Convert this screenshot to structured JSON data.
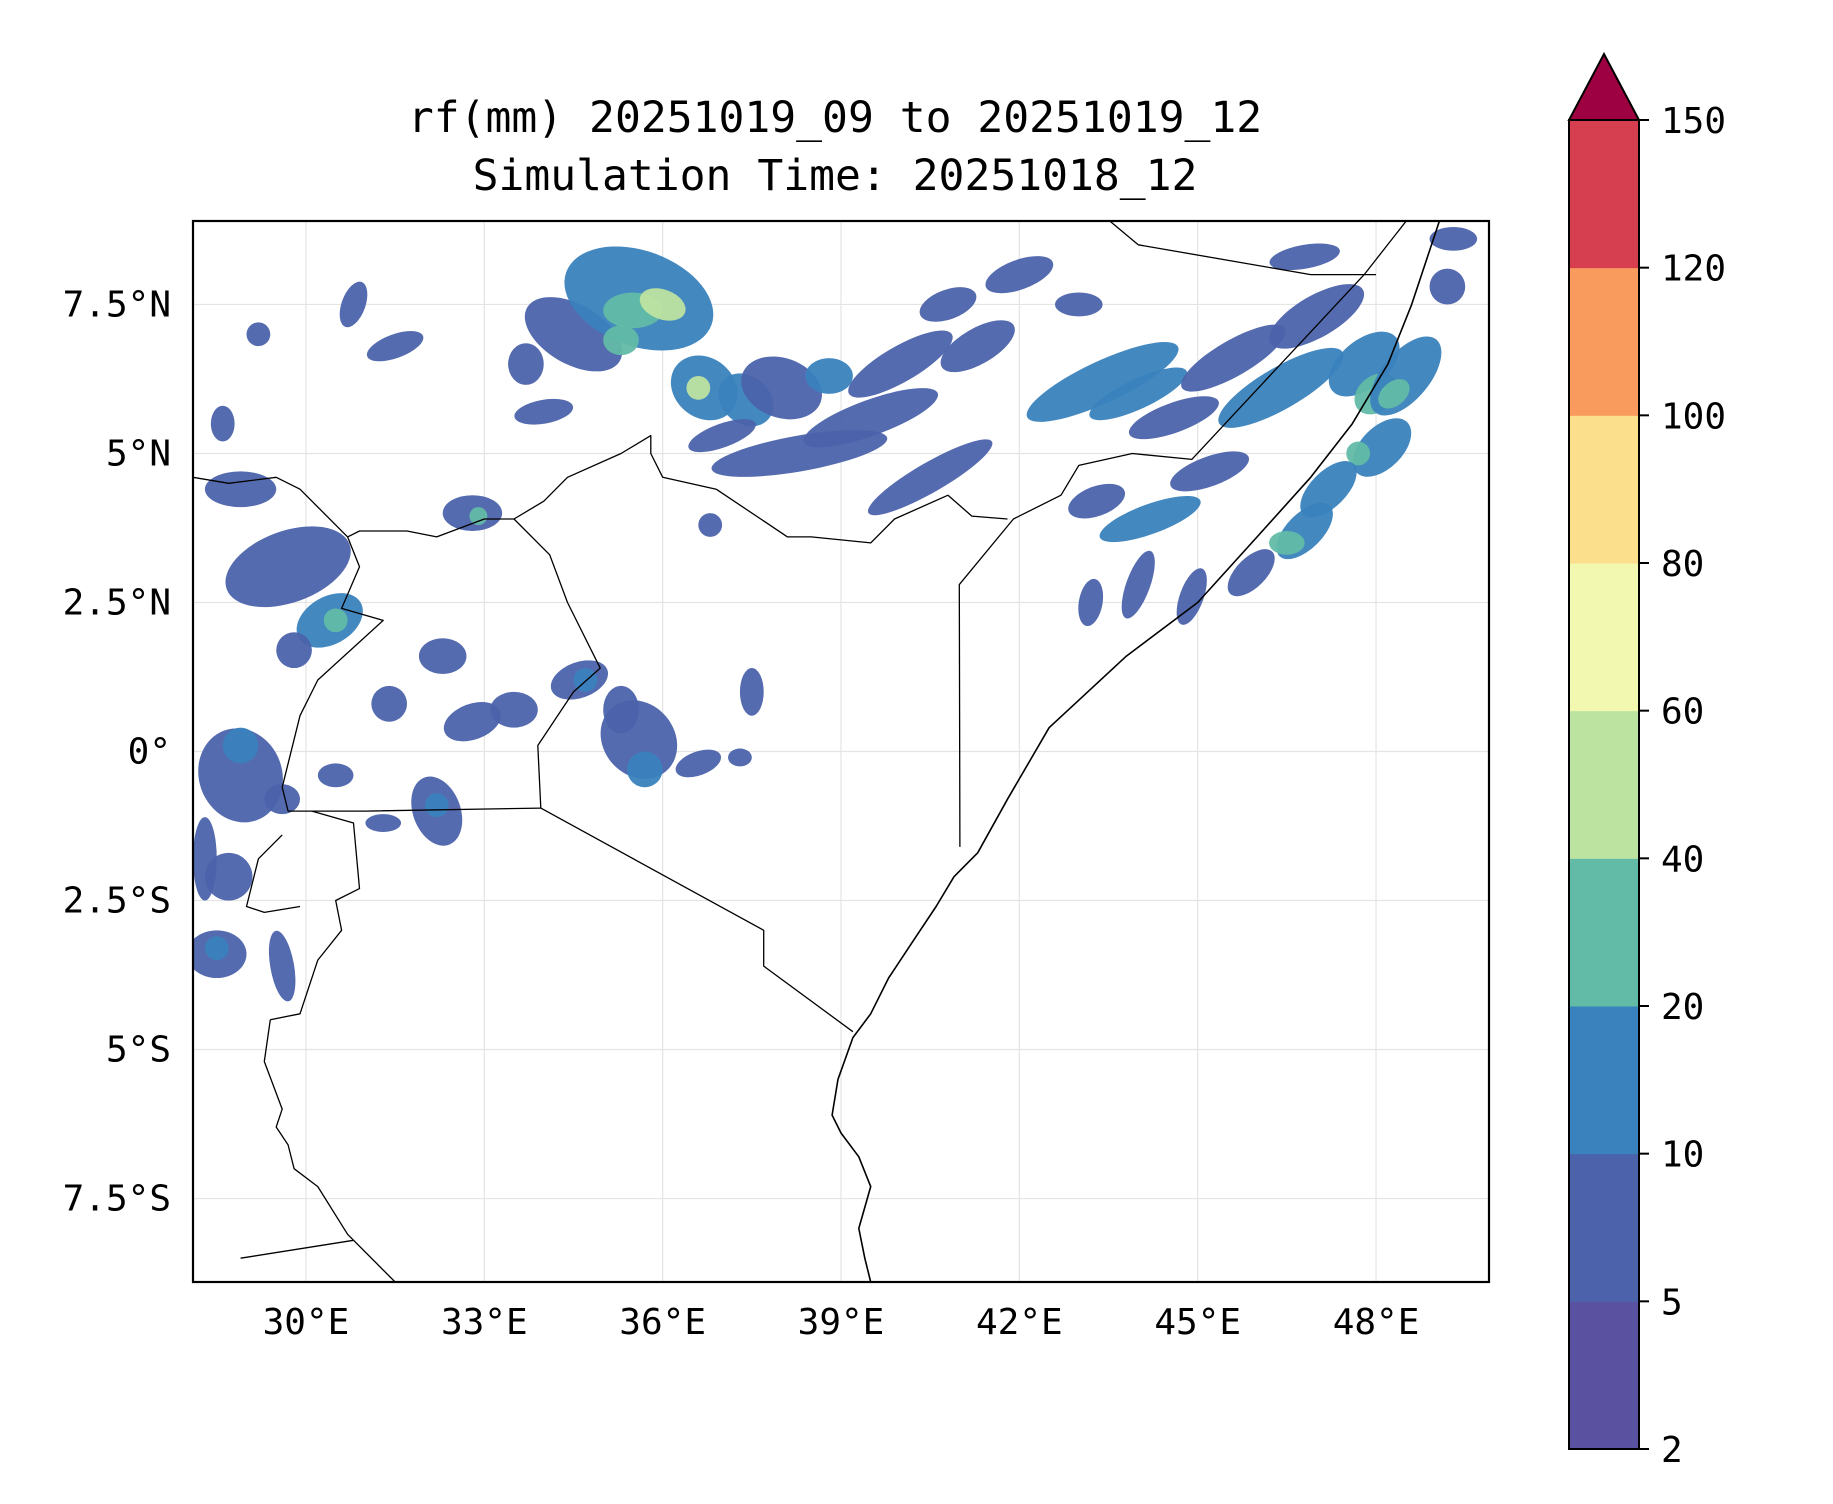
{
  "title": {
    "line1": "rf(mm) 20251019_09 to 20251019_12",
    "line2": "Simulation Time: 20251018_12"
  },
  "map": {
    "extent": {
      "lon_min": 28.1,
      "lon_max": 49.9,
      "lat_min": -8.9,
      "lat_max": 8.9
    },
    "gridlines": true,
    "lon_ticks": [
      {
        "value": 30,
        "label": "30°E"
      },
      {
        "value": 33,
        "label": "33°E"
      },
      {
        "value": 36,
        "label": "36°E"
      },
      {
        "value": 39,
        "label": "39°E"
      },
      {
        "value": 42,
        "label": "42°E"
      },
      {
        "value": 45,
        "label": "45°E"
      },
      {
        "value": 48,
        "label": "48°E"
      }
    ],
    "lat_ticks": [
      {
        "value": 7.5,
        "label": "7.5°N"
      },
      {
        "value": 5,
        "label": "5°N"
      },
      {
        "value": 2.5,
        "label": "2.5°N"
      },
      {
        "value": 0,
        "label": "0°"
      },
      {
        "value": -2.5,
        "label": "2.5°S"
      },
      {
        "value": -5,
        "label": "5°S"
      },
      {
        "value": -7.5,
        "label": "7.5°S"
      }
    ],
    "coastline": [
      [
        49.9,
        11.8
      ],
      [
        49.8,
        11.4
      ],
      [
        49.3,
        9.6
      ],
      [
        49.1,
        9.0
      ],
      [
        48.6,
        7.5
      ],
      [
        48.2,
        6.5
      ],
      [
        47.6,
        5.5
      ],
      [
        46.9,
        4.6
      ],
      [
        46.0,
        3.6
      ],
      [
        45.0,
        2.5
      ],
      [
        43.8,
        1.6
      ],
      [
        42.5,
        0.4
      ],
      [
        41.8,
        -0.8
      ],
      [
        41.3,
        -1.7
      ],
      [
        40.9,
        -2.1
      ],
      [
        40.6,
        -2.6
      ],
      [
        40.2,
        -3.2
      ],
      [
        39.8,
        -3.8
      ],
      [
        39.5,
        -4.4
      ],
      [
        39.2,
        -4.8
      ],
      [
        38.95,
        -5.5
      ],
      [
        38.85,
        -6.1
      ],
      [
        39.0,
        -6.4
      ],
      [
        39.3,
        -6.8
      ],
      [
        39.5,
        -7.3
      ],
      [
        39.3,
        -8.0
      ],
      [
        39.4,
        -8.5
      ],
      [
        39.5,
        -8.9
      ]
    ],
    "borders": [
      [
        [
          28.1,
          4.6
        ],
        [
          28.7,
          4.5
        ],
        [
          29.5,
          4.6
        ],
        [
          29.9,
          4.4
        ],
        [
          30.7,
          3.6
        ],
        [
          30.9,
          3.7
        ],
        [
          31.7,
          3.7
        ],
        [
          32.2,
          3.6
        ],
        [
          33.0,
          3.9
        ],
        [
          33.5,
          3.9
        ],
        [
          34.0,
          4.2
        ],
        [
          34.4,
          4.6
        ],
        [
          35.3,
          5.0
        ],
        [
          35.8,
          5.3
        ],
        [
          35.8,
          5.0
        ],
        [
          36.0,
          4.6
        ],
        [
          36.9,
          4.4
        ],
        [
          38.1,
          3.6
        ],
        [
          38.5,
          3.6
        ],
        [
          39.5,
          3.5
        ],
        [
          39.9,
          3.9
        ],
        [
          40.8,
          4.3
        ],
        [
          41.2,
          3.95
        ],
        [
          41.8,
          3.9
        ]
      ],
      [
        [
          33.5,
          3.9
        ],
        [
          34.1,
          3.3
        ],
        [
          34.4,
          2.5
        ],
        [
          34.95,
          1.4
        ],
        [
          34.5,
          1.0
        ],
        [
          33.9,
          0.1
        ],
        [
          33.95,
          -0.95
        ]
      ],
      [
        [
          30.7,
          3.6
        ],
        [
          30.9,
          3.1
        ],
        [
          30.6,
          2.4
        ],
        [
          31.3,
          2.2
        ],
        [
          30.2,
          1.2
        ],
        [
          29.9,
          0.6
        ],
        [
          29.6,
          -0.6
        ],
        [
          29.7,
          -1.0
        ],
        [
          30.1,
          -1.0
        ],
        [
          31.0,
          -1.0
        ],
        [
          33.95,
          -0.95
        ]
      ],
      [
        [
          33.95,
          -0.95
        ],
        [
          37.7,
          -3.0
        ],
        [
          37.7,
          -3.6
        ],
        [
          39.2,
          -4.7
        ]
      ],
      [
        [
          30.1,
          -1.0
        ],
        [
          30.8,
          -1.2
        ],
        [
          30.9,
          -2.3
        ],
        [
          30.5,
          -2.5
        ],
        [
          30.6,
          -3.0
        ],
        [
          30.2,
          -3.5
        ],
        [
          29.9,
          -4.4
        ],
        [
          29.4,
          -4.5
        ]
      ],
      [
        [
          29.6,
          -1.4
        ],
        [
          29.2,
          -1.8
        ],
        [
          29.0,
          -2.6
        ],
        [
          29.3,
          -2.7
        ],
        [
          29.9,
          -2.6
        ]
      ],
      [
        [
          29.4,
          -4.5
        ],
        [
          29.3,
          -5.2
        ],
        [
          29.6,
          -6.0
        ],
        [
          29.5,
          -6.3
        ],
        [
          29.7,
          -6.6
        ],
        [
          29.8,
          -7.0
        ],
        [
          30.2,
          -7.3
        ],
        [
          30.7,
          -8.1
        ],
        [
          31.5,
          -8.9
        ]
      ],
      [
        [
          28.9,
          -8.5
        ],
        [
          30.8,
          -8.2
        ]
      ],
      [
        [
          41.0,
          -1.6
        ],
        [
          40.99,
          2.8
        ],
        [
          41.9,
          3.9
        ],
        [
          42.7,
          4.3
        ],
        [
          43.0,
          4.8
        ],
        [
          43.9,
          5.0
        ],
        [
          44.9,
          4.9
        ],
        [
          47.8,
          8.0
        ],
        [
          48.9,
          9.4
        ]
      ],
      [
        [
          42.9,
          9.5
        ],
        [
          43.4,
          9.0
        ],
        [
          44.0,
          8.5
        ],
        [
          46.9,
          8.0
        ],
        [
          48.0,
          8.0
        ]
      ]
    ]
  },
  "chart_data": {
    "type": "heatmap",
    "variable": "rf(mm)",
    "levels": [
      2,
      5,
      10,
      20,
      40,
      60,
      80,
      100,
      120,
      150
    ],
    "colors": [
      "#5a51a1",
      "#4c63ab",
      "#3a82bd",
      "#62bba7",
      "#bde3a1",
      "#f2f8b0",
      "#fcdf8d",
      "#f99b5c",
      "#d53f50",
      "#9e0142"
    ],
    "extend": "max",
    "ticks": [
      "2",
      "5",
      "10",
      "20",
      "40",
      "60",
      "80",
      "100",
      "120",
      "150"
    ],
    "cells": [
      [
        34.5,
        7.0,
        0.9,
        0.5,
        30,
        1
      ],
      [
        35.6,
        7.6,
        1.3,
        0.8,
        20,
        2
      ],
      [
        35.5,
        7.4,
        0.5,
        0.3,
        0,
        3
      ],
      [
        36.0,
        7.5,
        0.4,
        0.25,
        20,
        4
      ],
      [
        35.3,
        6.9,
        0.3,
        0.25,
        0,
        3
      ],
      [
        36.7,
        6.1,
        0.6,
        0.5,
        40,
        2
      ],
      [
        36.6,
        6.1,
        0.2,
        0.2,
        0,
        4
      ],
      [
        37.4,
        5.9,
        0.5,
        0.4,
        40,
        2
      ],
      [
        38.0,
        6.1,
        0.7,
        0.5,
        20,
        1
      ],
      [
        38.8,
        6.3,
        0.4,
        0.3,
        0,
        2
      ],
      [
        39.5,
        5.6,
        1.2,
        0.3,
        -20,
        1
      ],
      [
        40.0,
        6.5,
        1.0,
        0.3,
        -30,
        1
      ],
      [
        37.0,
        5.3,
        0.6,
        0.2,
        -20,
        1
      ],
      [
        38.3,
        5.0,
        1.5,
        0.3,
        -10,
        1
      ],
      [
        40.5,
        4.6,
        1.2,
        0.25,
        -30,
        1
      ],
      [
        40.8,
        7.5,
        0.5,
        0.25,
        -20,
        1
      ],
      [
        41.3,
        6.8,
        0.7,
        0.3,
        -30,
        1
      ],
      [
        42.0,
        8.0,
        0.6,
        0.25,
        -20,
        1
      ],
      [
        43.0,
        7.5,
        0.4,
        0.2,
        0,
        1
      ],
      [
        43.4,
        6.2,
        1.4,
        0.35,
        -25,
        2
      ],
      [
        44.0,
        6.0,
        0.9,
        0.25,
        -25,
        2
      ],
      [
        44.6,
        5.6,
        0.8,
        0.25,
        -20,
        1
      ],
      [
        45.6,
        6.6,
        1.0,
        0.3,
        -30,
        1
      ],
      [
        46.4,
        6.1,
        1.2,
        0.35,
        -30,
        2
      ],
      [
        47.0,
        7.3,
        0.9,
        0.35,
        -30,
        1
      ],
      [
        47.8,
        6.5,
        0.7,
        0.4,
        -40,
        2
      ],
      [
        48.0,
        6.0,
        0.4,
        0.3,
        -40,
        3
      ],
      [
        48.5,
        6.3,
        0.8,
        0.4,
        -50,
        2
      ],
      [
        48.3,
        6.0,
        0.3,
        0.2,
        -40,
        3
      ],
      [
        48.1,
        5.1,
        0.6,
        0.35,
        -45,
        2
      ],
      [
        47.7,
        5.0,
        0.2,
        0.2,
        0,
        3
      ],
      [
        47.2,
        4.4,
        0.6,
        0.3,
        -45,
        2
      ],
      [
        46.8,
        3.7,
        0.6,
        0.3,
        -45,
        2
      ],
      [
        46.5,
        3.5,
        0.3,
        0.2,
        0,
        3
      ],
      [
        45.9,
        3.0,
        0.5,
        0.25,
        -45,
        1
      ],
      [
        44.2,
        3.9,
        0.9,
        0.25,
        -20,
        2
      ],
      [
        45.2,
        4.7,
        0.7,
        0.25,
        -20,
        1
      ],
      [
        43.3,
        4.2,
        0.5,
        0.25,
        -20,
        1
      ],
      [
        44.0,
        2.8,
        0.2,
        0.6,
        20,
        1
      ],
      [
        44.9,
        2.6,
        0.2,
        0.5,
        20,
        1
      ],
      [
        43.2,
        2.5,
        0.2,
        0.4,
        10,
        1
      ],
      [
        46.8,
        8.3,
        0.6,
        0.2,
        -10,
        1
      ],
      [
        49.2,
        7.8,
        0.3,
        0.3,
        0,
        1
      ],
      [
        49.3,
        8.6,
        0.4,
        0.2,
        0,
        1
      ],
      [
        28.9,
        4.4,
        0.6,
        0.3,
        0,
        1
      ],
      [
        29.7,
        3.1,
        1.1,
        0.6,
        -20,
        1
      ],
      [
        30.4,
        2.2,
        0.6,
        0.4,
        -30,
        2
      ],
      [
        30.5,
        2.2,
        0.2,
        0.2,
        0,
        3
      ],
      [
        29.8,
        1.7,
        0.3,
        0.3,
        0,
        1
      ],
      [
        28.9,
        -0.4,
        0.7,
        0.8,
        -20,
        1
      ],
      [
        28.9,
        0.1,
        0.3,
        0.3,
        0,
        2
      ],
      [
        28.3,
        -1.8,
        0.2,
        0.7,
        0,
        1
      ],
      [
        28.5,
        -3.4,
        0.5,
        0.4,
        0,
        1
      ],
      [
        28.5,
        -3.3,
        0.2,
        0.2,
        0,
        2
      ],
      [
        29.6,
        -3.6,
        0.2,
        0.6,
        -10,
        1
      ],
      [
        28.7,
        -2.1,
        0.4,
        0.4,
        0,
        1
      ],
      [
        29.6,
        -0.8,
        0.3,
        0.25,
        0,
        1
      ],
      [
        32.2,
        -1.0,
        0.4,
        0.6,
        -20,
        1
      ],
      [
        32.2,
        -0.9,
        0.2,
        0.2,
        0,
        2
      ],
      [
        31.3,
        -1.2,
        0.3,
        0.15,
        0,
        1
      ],
      [
        32.8,
        4.0,
        0.5,
        0.3,
        0,
        1
      ],
      [
        32.9,
        3.95,
        0.15,
        0.15,
        0,
        3
      ],
      [
        34.6,
        1.2,
        0.5,
        0.3,
        -20,
        1
      ],
      [
        34.7,
        1.2,
        0.2,
        0.2,
        0,
        2
      ],
      [
        35.6,
        0.2,
        0.6,
        0.7,
        -40,
        1
      ],
      [
        35.7,
        -0.3,
        0.3,
        0.3,
        0,
        2
      ],
      [
        35.3,
        0.7,
        0.3,
        0.4,
        0,
        1
      ],
      [
        36.6,
        -0.2,
        0.4,
        0.2,
        -20,
        1
      ],
      [
        37.3,
        -0.1,
        0.2,
        0.15,
        0,
        1
      ],
      [
        32.8,
        0.5,
        0.5,
        0.3,
        -20,
        1
      ],
      [
        33.5,
        0.7,
        0.4,
        0.3,
        0,
        1
      ],
      [
        32.3,
        1.6,
        0.4,
        0.3,
        0,
        1
      ],
      [
        31.4,
        0.8,
        0.3,
        0.3,
        0,
        1
      ],
      [
        30.5,
        -0.4,
        0.3,
        0.2,
        0,
        1
      ],
      [
        28.6,
        5.5,
        0.2,
        0.3,
        0,
        1
      ],
      [
        29.2,
        7.0,
        0.2,
        0.2,
        0,
        1
      ],
      [
        30.8,
        7.5,
        0.2,
        0.4,
        20,
        1
      ],
      [
        31.5,
        6.8,
        0.5,
        0.2,
        -20,
        1
      ],
      [
        33.7,
        6.5,
        0.3,
        0.35,
        0,
        1
      ],
      [
        34.0,
        5.7,
        0.5,
        0.2,
        -10,
        1
      ],
      [
        36.8,
        3.8,
        0.2,
        0.2,
        0,
        1
      ],
      [
        37.5,
        1.0,
        0.2,
        0.4,
        0,
        1
      ]
    ]
  }
}
